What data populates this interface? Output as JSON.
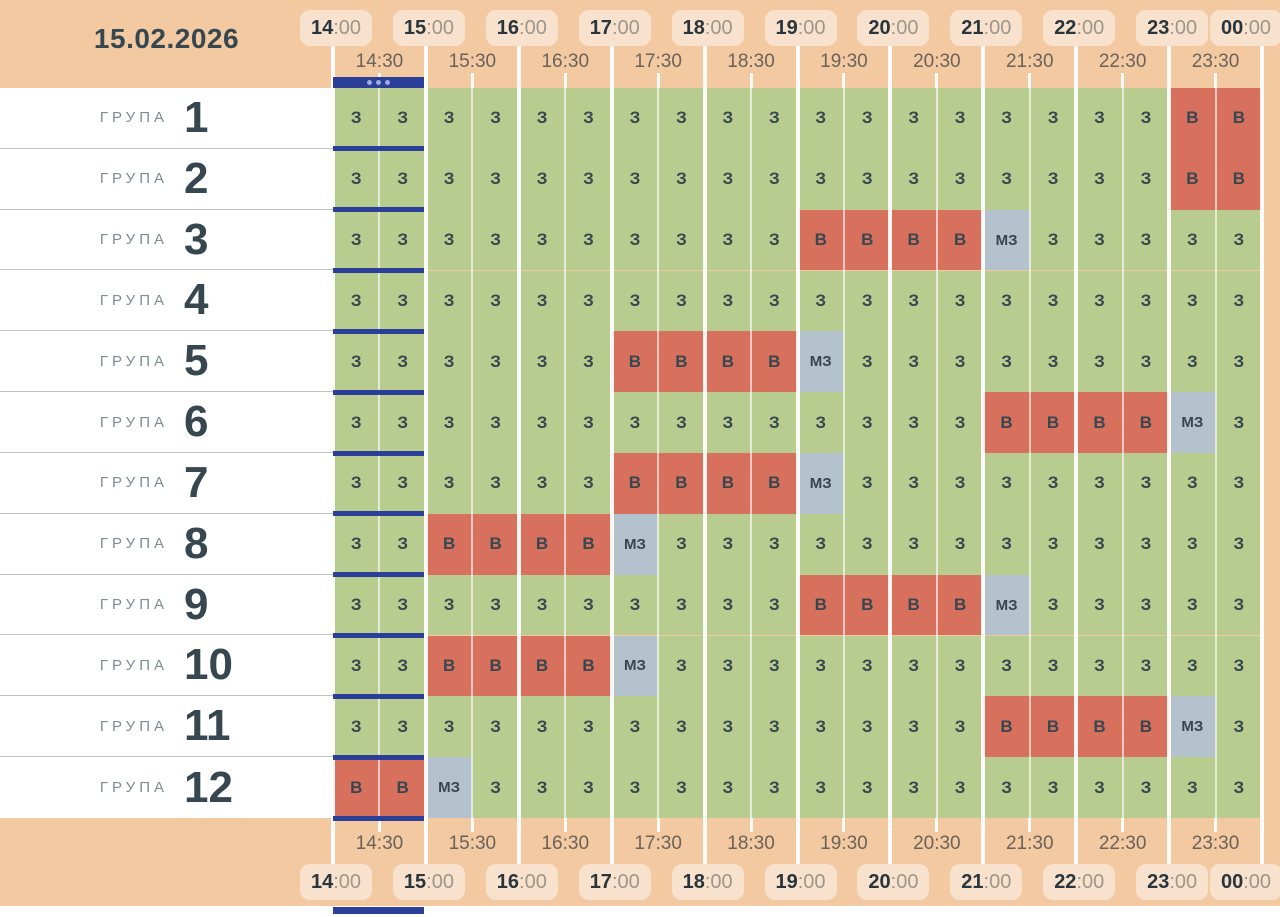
{
  "date": "15.02.2026",
  "group_label": "ГРУПА",
  "selection": {
    "start": "14:00",
    "end": "15:00"
  },
  "time_axis": {
    "hours": [
      "14:00",
      "15:00",
      "16:00",
      "17:00",
      "18:00",
      "19:00",
      "20:00",
      "21:00",
      "22:00",
      "23:00",
      "00:00"
    ],
    "half_hours": [
      "14:30",
      "15:30",
      "16:30",
      "17:30",
      "18:30",
      "19:30",
      "20:30",
      "21:30",
      "22:30",
      "23:30"
    ]
  },
  "cell_legend": {
    "З": "green",
    "В": "red",
    "МЗ": "gray"
  },
  "colors": {
    "header_bg": "#f2c9a1",
    "chip_bg": "#f8e2cd",
    "green": "#b9cc90",
    "red": "#d8705e",
    "gray": "#b4c2cd",
    "selection_blue": "#2b3e98",
    "text_dark": "#37474f",
    "label_gray": "#7e8b93"
  },
  "groups": [
    {
      "number": "1",
      "cells": [
        "З",
        "З",
        "З",
        "З",
        "З",
        "З",
        "З",
        "З",
        "З",
        "З",
        "З",
        "З",
        "З",
        "З",
        "З",
        "З",
        "З",
        "З",
        "В",
        "В"
      ]
    },
    {
      "number": "2",
      "cells": [
        "З",
        "З",
        "З",
        "З",
        "З",
        "З",
        "З",
        "З",
        "З",
        "З",
        "З",
        "З",
        "З",
        "З",
        "З",
        "З",
        "З",
        "З",
        "В",
        "В"
      ]
    },
    {
      "number": "3",
      "cells": [
        "З",
        "З",
        "З",
        "З",
        "З",
        "З",
        "З",
        "З",
        "З",
        "З",
        "В",
        "В",
        "В",
        "В",
        "МЗ",
        "З",
        "З",
        "З",
        "З",
        "З"
      ]
    },
    {
      "number": "4",
      "cells": [
        "З",
        "З",
        "З",
        "З",
        "З",
        "З",
        "З",
        "З",
        "З",
        "З",
        "З",
        "З",
        "З",
        "З",
        "З",
        "З",
        "З",
        "З",
        "З",
        "З"
      ]
    },
    {
      "number": "5",
      "cells": [
        "З",
        "З",
        "З",
        "З",
        "З",
        "З",
        "В",
        "В",
        "В",
        "В",
        "МЗ",
        "З",
        "З",
        "З",
        "З",
        "З",
        "З",
        "З",
        "З",
        "З"
      ]
    },
    {
      "number": "6",
      "cells": [
        "З",
        "З",
        "З",
        "З",
        "З",
        "З",
        "З",
        "З",
        "З",
        "З",
        "З",
        "З",
        "З",
        "З",
        "В",
        "В",
        "В",
        "В",
        "МЗ",
        "З"
      ]
    },
    {
      "number": "7",
      "cells": [
        "З",
        "З",
        "З",
        "З",
        "З",
        "З",
        "В",
        "В",
        "В",
        "В",
        "МЗ",
        "З",
        "З",
        "З",
        "З",
        "З",
        "З",
        "З",
        "З",
        "З"
      ]
    },
    {
      "number": "8",
      "cells": [
        "З",
        "З",
        "В",
        "В",
        "В",
        "В",
        "МЗ",
        "З",
        "З",
        "З",
        "З",
        "З",
        "З",
        "З",
        "З",
        "З",
        "З",
        "З",
        "З",
        "З"
      ]
    },
    {
      "number": "9",
      "cells": [
        "З",
        "З",
        "З",
        "З",
        "З",
        "З",
        "З",
        "З",
        "З",
        "З",
        "В",
        "В",
        "В",
        "В",
        "МЗ",
        "З",
        "З",
        "З",
        "З",
        "З"
      ]
    },
    {
      "number": "10",
      "cells": [
        "З",
        "З",
        "В",
        "В",
        "В",
        "В",
        "МЗ",
        "З",
        "З",
        "З",
        "З",
        "З",
        "З",
        "З",
        "З",
        "З",
        "З",
        "З",
        "З",
        "З"
      ]
    },
    {
      "number": "11",
      "cells": [
        "З",
        "З",
        "З",
        "З",
        "З",
        "З",
        "З",
        "З",
        "З",
        "З",
        "З",
        "З",
        "З",
        "З",
        "В",
        "В",
        "В",
        "В",
        "МЗ",
        "З"
      ]
    },
    {
      "number": "12",
      "cells": [
        "В",
        "В",
        "МЗ",
        "З",
        "З",
        "З",
        "З",
        "З",
        "З",
        "З",
        "З",
        "З",
        "З",
        "З",
        "З",
        "З",
        "З",
        "З",
        "З",
        "З"
      ]
    }
  ]
}
